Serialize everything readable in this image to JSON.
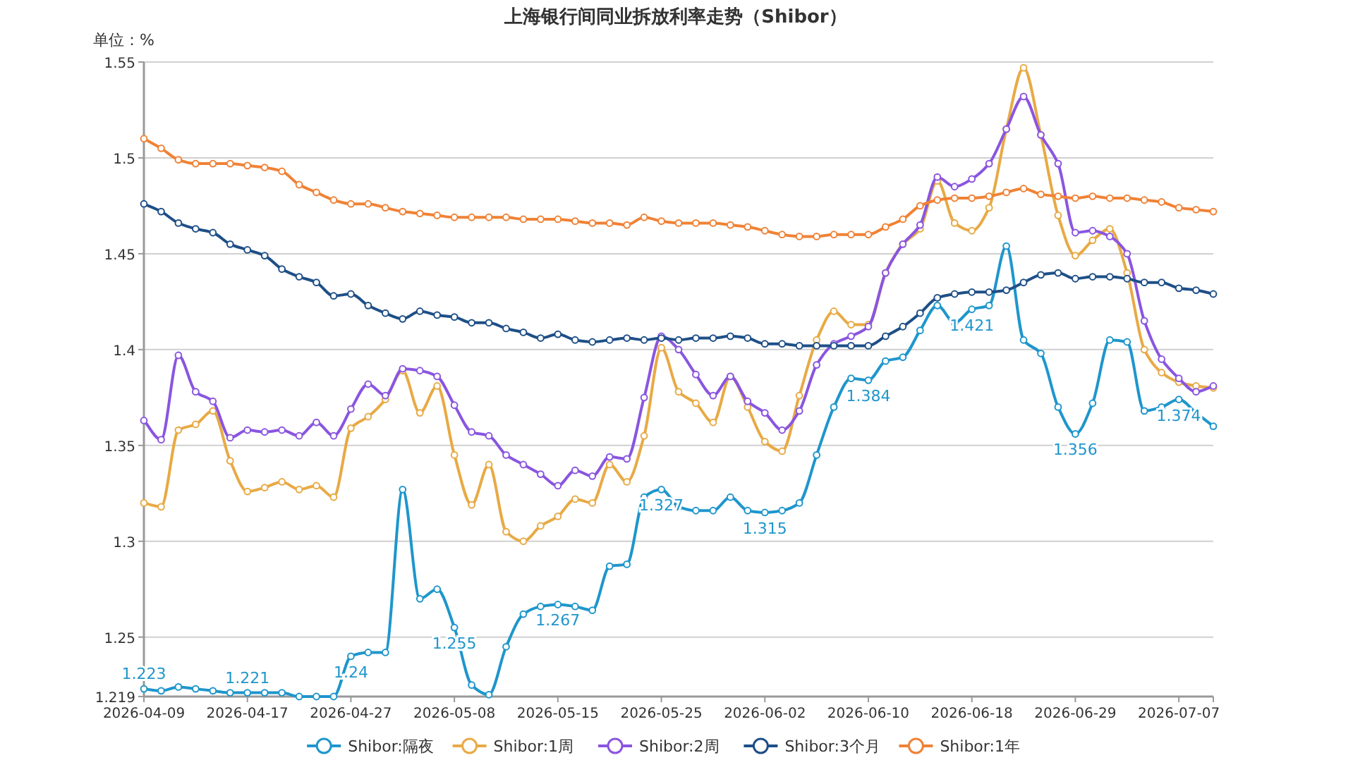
{
  "chart_data": {
    "type": "line",
    "title": "上海银行间同业拆放利率走势（Shibor）",
    "ylabel": "单位：%",
    "categories": [
      "2026-04-09",
      null,
      null,
      null,
      null,
      null,
      "2026-04-17",
      null,
      null,
      null,
      null,
      null,
      "2026-04-27",
      null,
      null,
      null,
      null,
      null,
      "2026-05-08",
      null,
      null,
      null,
      null,
      null,
      "2026-05-15",
      null,
      null,
      null,
      null,
      null,
      "2026-05-25",
      null,
      null,
      null,
      null,
      null,
      "2026-06-02",
      null,
      null,
      null,
      null,
      null,
      "2026-06-10",
      null,
      null,
      null,
      null,
      null,
      "2026-06-18",
      null,
      null,
      null,
      null,
      null,
      "2026-06-29",
      null,
      null,
      null,
      null,
      null,
      "2026-07-07",
      null,
      null
    ],
    "ylim": [
      1.219,
      1.55
    ],
    "yticks": [
      1.219,
      1.25,
      1.3,
      1.35,
      1.4,
      1.45,
      1.5,
      1.55
    ],
    "grid": "y",
    "legend": "bottom",
    "marker": "circle",
    "line_style": "solid",
    "series": [
      {
        "name": "Shibor:隔夜",
        "color": "#1e96cc",
        "values": [
          1.223,
          1.222,
          1.224,
          1.223,
          1.222,
          1.221,
          1.221,
          1.221,
          1.221,
          1.219,
          1.219,
          1.219,
          1.24,
          1.242,
          1.242,
          1.327,
          1.27,
          1.275,
          1.255,
          1.225,
          1.22,
          1.245,
          1.262,
          1.266,
          1.267,
          1.266,
          1.264,
          1.287,
          1.288,
          1.323,
          1.327,
          1.318,
          1.316,
          1.316,
          1.323,
          1.316,
          1.315,
          1.316,
          1.32,
          1.345,
          1.37,
          1.385,
          1.384,
          1.394,
          1.396,
          1.41,
          1.423,
          1.414,
          1.421,
          1.423,
          1.454,
          1.405,
          1.398,
          1.37,
          1.356,
          1.372,
          1.405,
          1.404,
          1.368,
          1.37,
          1.374,
          1.367,
          1.36
        ],
        "value_labels": [
          "1.223",
          null,
          null,
          null,
          null,
          null,
          "1.221",
          null,
          null,
          null,
          null,
          null,
          "1.24",
          null,
          null,
          null,
          null,
          null,
          "1.255",
          null,
          null,
          null,
          null,
          null,
          "1.267",
          null,
          null,
          null,
          null,
          null,
          "1.327",
          null,
          null,
          null,
          null,
          null,
          "1.315",
          null,
          null,
          null,
          null,
          null,
          "1.384",
          null,
          null,
          null,
          null,
          null,
          "1.421",
          null,
          null,
          null,
          null,
          null,
          "1.356",
          null,
          null,
          null,
          null,
          null,
          "1.374",
          null,
          null
        ]
      },
      {
        "name": "Shibor:1周",
        "color": "#e8aa45",
        "values": [
          1.32,
          1.318,
          1.358,
          1.361,
          1.368,
          1.342,
          1.326,
          1.328,
          1.331,
          1.327,
          1.329,
          1.323,
          1.359,
          1.365,
          1.374,
          1.389,
          1.367,
          1.381,
          1.345,
          1.319,
          1.34,
          1.305,
          1.3,
          1.308,
          1.313,
          1.322,
          1.32,
          1.34,
          1.331,
          1.355,
          1.401,
          1.378,
          1.372,
          1.362,
          1.386,
          1.37,
          1.352,
          1.347,
          1.376,
          1.405,
          1.42,
          1.413,
          1.413,
          1.44,
          1.455,
          1.463,
          1.488,
          1.466,
          1.462,
          1.474,
          1.515,
          1.547,
          1.512,
          1.47,
          1.449,
          1.457,
          1.463,
          1.44,
          1.4,
          1.388,
          1.383,
          1.381,
          1.38
        ]
      },
      {
        "name": "Shibor:2周",
        "color": "#8a55e0",
        "values": [
          1.363,
          1.353,
          1.397,
          1.378,
          1.373,
          1.354,
          1.358,
          1.357,
          1.358,
          1.355,
          1.362,
          1.355,
          1.369,
          1.382,
          1.376,
          1.39,
          1.389,
          1.386,
          1.371,
          1.357,
          1.355,
          1.345,
          1.34,
          1.335,
          1.329,
          1.337,
          1.334,
          1.344,
          1.343,
          1.375,
          1.407,
          1.4,
          1.387,
          1.376,
          1.386,
          1.373,
          1.367,
          1.358,
          1.368,
          1.392,
          1.403,
          1.407,
          1.412,
          1.44,
          1.455,
          1.465,
          1.49,
          1.485,
          1.489,
          1.497,
          1.515,
          1.532,
          1.512,
          1.497,
          1.461,
          1.462,
          1.459,
          1.45,
          1.415,
          1.395,
          1.385,
          1.378,
          1.381
        ]
      },
      {
        "name": "Shibor:3个月",
        "color": "#1e4f87",
        "values": [
          1.476,
          1.472,
          1.466,
          1.463,
          1.461,
          1.455,
          1.452,
          1.449,
          1.442,
          1.438,
          1.435,
          1.428,
          1.429,
          1.423,
          1.419,
          1.416,
          1.42,
          1.418,
          1.417,
          1.414,
          1.414,
          1.411,
          1.409,
          1.406,
          1.408,
          1.405,
          1.404,
          1.405,
          1.406,
          1.405,
          1.406,
          1.405,
          1.406,
          1.406,
          1.407,
          1.406,
          1.403,
          1.403,
          1.402,
          1.402,
          1.402,
          1.402,
          1.402,
          1.407,
          1.412,
          1.419,
          1.427,
          1.429,
          1.43,
          1.43,
          1.431,
          1.435,
          1.439,
          1.44,
          1.437,
          1.438,
          1.438,
          1.437,
          1.435,
          1.435,
          1.432,
          1.431,
          1.429
        ]
      },
      {
        "name": "Shibor:1年",
        "color": "#f08235",
        "values": [
          1.51,
          1.505,
          1.499,
          1.497,
          1.497,
          1.497,
          1.496,
          1.495,
          1.493,
          1.486,
          1.482,
          1.478,
          1.476,
          1.476,
          1.474,
          1.472,
          1.471,
          1.47,
          1.469,
          1.469,
          1.469,
          1.469,
          1.468,
          1.468,
          1.468,
          1.467,
          1.466,
          1.466,
          1.465,
          1.469,
          1.467,
          1.466,
          1.466,
          1.466,
          1.465,
          1.464,
          1.462,
          1.46,
          1.459,
          1.459,
          1.46,
          1.46,
          1.46,
          1.464,
          1.468,
          1.475,
          1.478,
          1.479,
          1.479,
          1.48,
          1.482,
          1.484,
          1.481,
          1.48,
          1.479,
          1.48,
          1.479,
          1.479,
          1.478,
          1.477,
          1.474,
          1.473,
          1.472
        ]
      }
    ]
  }
}
